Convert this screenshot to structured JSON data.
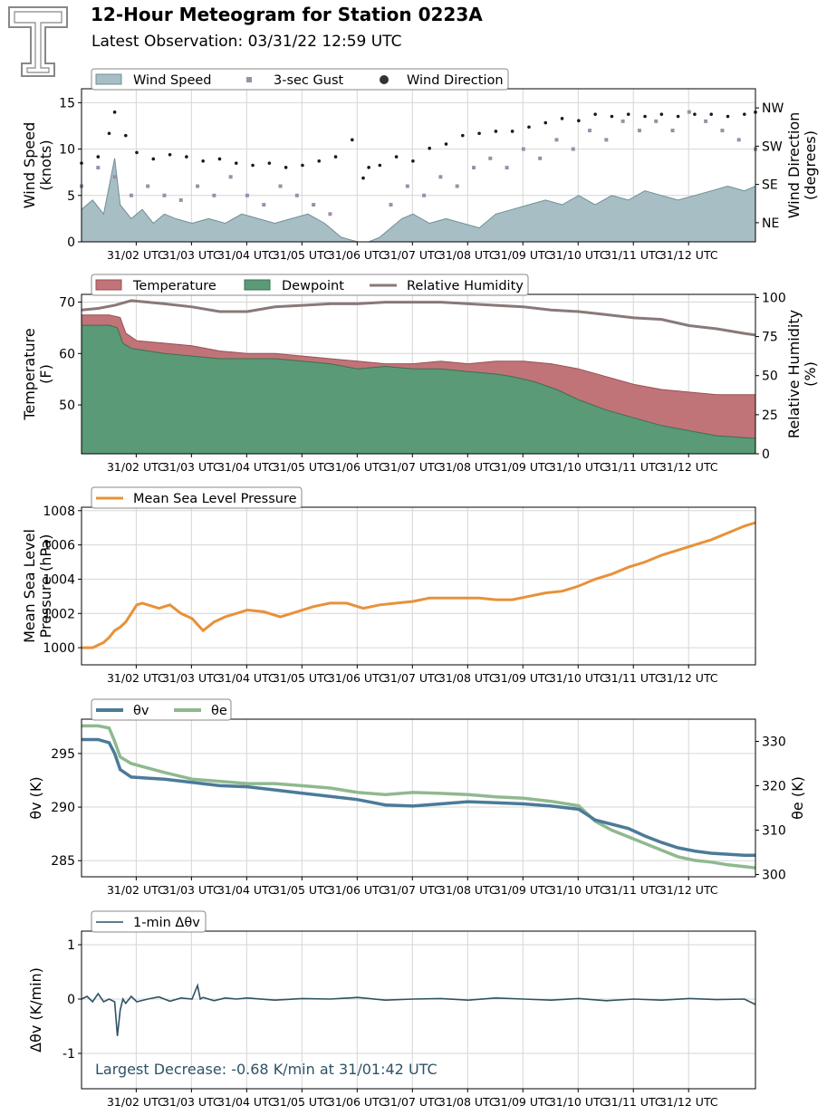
{
  "header": {
    "title": "12-Hour Meteogram for Station 0223A",
    "subtitle": "Latest Observation: 03/31/22 12:59 UTC"
  },
  "colors": {
    "wind_speed_fill": "#a7bec4",
    "wind_speed_line": "#6f8f95",
    "gust": "#9b8fa8",
    "direction": "#1a1a1a",
    "temperature": "#c07478",
    "dewpoint": "#5a9a76",
    "rh": "#8b7878",
    "pressure": "#e8913a",
    "theta_v": "#4c7a99",
    "theta_e": "#8fb98f",
    "delta": "#2d5266",
    "annotation": "#2d5266"
  },
  "x_tick_labels": [
    "31/02 UTC",
    "31/03 UTC",
    "31/04 UTC",
    "31/05 UTC",
    "31/06 UTC",
    "31/07 UTC",
    "31/08 UTC",
    "31/09 UTC",
    "31/10 UTC",
    "31/11 UTC",
    "31/12 UTC"
  ],
  "chart_data": [
    {
      "id": "wind",
      "type": "area",
      "ylabel_lines": [
        "Wind Speed",
        "(knots)"
      ],
      "y2label_lines": [
        "Wind Direction",
        "(degrees)"
      ],
      "ylim": [
        0,
        16.5
      ],
      "yticks": [
        0,
        5,
        10,
        15
      ],
      "y2ticks": [
        {
          "value": 45,
          "label": "NE"
        },
        {
          "value": 135,
          "label": "SE"
        },
        {
          "value": 225,
          "label": "SW"
        },
        {
          "value": 315,
          "label": "NW"
        }
      ],
      "y2lim": [
        0,
        360
      ],
      "legend": [
        "Wind Speed",
        "3-sec Gust",
        "Wind Direction"
      ],
      "legend_placement": "top-left",
      "series": [
        {
          "name": "Wind Speed",
          "x": [
            0,
            0.2,
            0.4,
            0.6,
            0.7,
            0.9,
            1.1,
            1.3,
            1.5,
            1.7,
            2,
            2.3,
            2.6,
            2.9,
            3.2,
            3.5,
            3.8,
            4.1,
            4.4,
            4.7,
            5,
            5.2,
            5.4,
            5.6,
            5.8,
            6.0,
            6.3,
            6.6,
            6.9,
            7.2,
            7.5,
            7.8,
            8.1,
            8.4,
            8.7,
            9.0,
            9.3,
            9.6,
            9.9,
            10.2,
            10.5,
            10.8,
            11.1,
            11.4,
            11.7,
            12.0,
            12.2
          ],
          "values": [
            3.5,
            4.5,
            3.0,
            9.0,
            4.0,
            2.5,
            3.5,
            2.0,
            3.0,
            2.5,
            2.0,
            2.5,
            2.0,
            3.0,
            2.5,
            2.0,
            2.5,
            3.0,
            2.0,
            0.5,
            0,
            0,
            0.5,
            1.5,
            2.5,
            3.0,
            2.0,
            2.5,
            2.0,
            1.5,
            3.0,
            3.5,
            4.0,
            4.5,
            4.0,
            5.0,
            4.0,
            5.0,
            4.5,
            5.5,
            5.0,
            4.5,
            5.0,
            5.5,
            6.0,
            5.5,
            6.0
          ]
        },
        {
          "name": "3-sec Gust",
          "x": [
            0,
            0.3,
            0.6,
            0.9,
            1.2,
            1.5,
            1.8,
            2.1,
            2.4,
            2.7,
            3.0,
            3.3,
            3.6,
            3.9,
            4.2,
            4.5,
            5.6,
            5.9,
            6.2,
            6.5,
            6.8,
            7.1,
            7.4,
            7.7,
            8.0,
            8.3,
            8.6,
            8.9,
            9.2,
            9.5,
            9.8,
            10.1,
            10.4,
            10.7,
            11.0,
            11.3,
            11.6,
            11.9,
            12.2
          ],
          "values": [
            6,
            8,
            7,
            5,
            6,
            5,
            4.5,
            6,
            5,
            7,
            5,
            4,
            6,
            5,
            4,
            3,
            4,
            6,
            5,
            7,
            6,
            8,
            9,
            8,
            10,
            9,
            11,
            10,
            12,
            11,
            13,
            12,
            13,
            12,
            14,
            13,
            12,
            11,
            10
          ]
        },
        {
          "name": "Wind Direction",
          "x": [
            0,
            0.3,
            0.5,
            0.6,
            0.8,
            1.0,
            1.3,
            1.6,
            1.9,
            2.2,
            2.5,
            2.8,
            3.1,
            3.4,
            3.7,
            4.0,
            4.3,
            4.6,
            4.9,
            5.1,
            5.2,
            5.4,
            5.7,
            6.0,
            6.3,
            6.6,
            6.9,
            7.2,
            7.5,
            7.8,
            8.1,
            8.4,
            8.7,
            9.0,
            9.3,
            9.6,
            9.9,
            10.2,
            10.5,
            10.8,
            11.1,
            11.4,
            11.7,
            12.0,
            12.2
          ],
          "values": [
            185,
            200,
            255,
            305,
            250,
            210,
            195,
            205,
            200,
            190,
            195,
            185,
            180,
            185,
            175,
            180,
            190,
            200,
            240,
            150,
            175,
            180,
            200,
            190,
            220,
            230,
            250,
            255,
            260,
            260,
            270,
            280,
            290,
            285,
            300,
            295,
            300,
            295,
            300,
            295,
            300,
            300,
            295,
            300,
            305
          ]
        }
      ]
    },
    {
      "id": "temp",
      "type": "area",
      "ylabel_lines": [
        "Temperature",
        "(F)"
      ],
      "y2label_lines": [
        "Relative Humidity",
        "(%)"
      ],
      "ylim": [
        40.5,
        71.5
      ],
      "yticks": [
        50,
        60,
        70
      ],
      "y2lim": [
        0,
        102
      ],
      "y2ticks": [
        0,
        25,
        50,
        75,
        100
      ],
      "legend": [
        "Temperature",
        "Dewpoint",
        "Relative Humidity"
      ],
      "legend_placement": "top-left",
      "series": [
        {
          "name": "Temperature",
          "x": [
            0,
            0.5,
            0.7,
            0.8,
            1.0,
            1.5,
            2.0,
            2.5,
            3.0,
            3.5,
            4.0,
            4.5,
            5.0,
            5.5,
            6.0,
            6.5,
            7.0,
            7.5,
            8.0,
            8.5,
            9.0,
            9.5,
            10.0,
            10.5,
            11.0,
            11.5,
            12.2
          ],
          "values": [
            67.5,
            67.5,
            67.0,
            64.0,
            62.5,
            62.0,
            61.5,
            60.5,
            60.0,
            60.0,
            59.5,
            59.0,
            58.5,
            58.0,
            58.0,
            58.5,
            58.0,
            58.5,
            58.5,
            58.0,
            57.0,
            55.5,
            54.0,
            53.0,
            52.5,
            52.0,
            52.0
          ]
        },
        {
          "name": "Dewpoint",
          "x": [
            0,
            0.5,
            0.65,
            0.75,
            0.9,
            1.5,
            2.0,
            2.5,
            3.0,
            3.5,
            4.0,
            4.5,
            5.0,
            5.5,
            6.0,
            6.5,
            7.0,
            7.5,
            7.8,
            8.2,
            8.6,
            9.0,
            9.5,
            10.0,
            10.5,
            11.0,
            11.5,
            12.2
          ],
          "values": [
            65.5,
            65.5,
            65.0,
            62.0,
            61.0,
            60.0,
            59.5,
            59.0,
            59.0,
            59.0,
            58.5,
            58.0,
            57.0,
            57.5,
            57.0,
            57.0,
            56.5,
            56.0,
            55.5,
            54.5,
            53.0,
            51.0,
            49.0,
            47.5,
            46.0,
            45.0,
            44.0,
            43.5
          ]
        },
        {
          "name": "Relative Humidity",
          "x": [
            0,
            0.3,
            0.6,
            0.9,
            1.2,
            1.5,
            2.0,
            2.5,
            3.0,
            3.5,
            4.0,
            4.5,
            5.0,
            5.5,
            6.0,
            6.5,
            7.0,
            7.5,
            8.0,
            8.5,
            9.0,
            9.5,
            10.0,
            10.5,
            11.0,
            11.5,
            12.0,
            12.2
          ],
          "values": [
            92,
            93,
            95,
            98,
            97,
            96,
            94,
            91,
            91,
            94,
            95,
            96,
            96,
            97,
            97,
            97,
            96,
            95,
            94,
            92,
            91,
            89,
            87,
            86,
            82,
            80,
            77,
            76
          ]
        }
      ]
    },
    {
      "id": "pressure",
      "type": "line",
      "ylabel_lines": [
        "Mean Sea Level",
        "Pressure (hPa)"
      ],
      "ylim": [
        999.0,
        1008.2
      ],
      "yticks": [
        1000,
        1002,
        1004,
        1006,
        1008
      ],
      "legend": [
        "Mean Sea Level Pressure"
      ],
      "legend_placement": "top-left",
      "series": [
        {
          "name": "Mean Sea Level Pressure",
          "x": [
            0,
            0.2,
            0.4,
            0.5,
            0.6,
            0.7,
            0.8,
            0.9,
            1.0,
            1.1,
            1.2,
            1.4,
            1.6,
            1.8,
            2.0,
            2.2,
            2.4,
            2.6,
            2.8,
            3.0,
            3.3,
            3.6,
            3.9,
            4.2,
            4.5,
            4.8,
            5.1,
            5.4,
            5.7,
            6.0,
            6.3,
            6.6,
            6.9,
            7.2,
            7.5,
            7.8,
            8.1,
            8.4,
            8.7,
            9.0,
            9.3,
            9.6,
            9.9,
            10.2,
            10.5,
            10.8,
            11.1,
            11.4,
            11.7,
            12.0,
            12.2
          ],
          "values": [
            1000.0,
            1000.0,
            1000.3,
            1000.6,
            1001.0,
            1001.2,
            1001.5,
            1002.0,
            1002.5,
            1002.6,
            1002.5,
            1002.3,
            1002.5,
            1002.0,
            1001.7,
            1001.0,
            1001.5,
            1001.8,
            1002.0,
            1002.2,
            1002.1,
            1001.8,
            1002.1,
            1002.4,
            1002.6,
            1002.6,
            1002.3,
            1002.5,
            1002.6,
            1002.7,
            1002.9,
            1002.9,
            1002.9,
            1002.9,
            1002.8,
            1002.8,
            1003.0,
            1003.2,
            1003.3,
            1003.6,
            1004.0,
            1004.3,
            1004.7,
            1005.0,
            1005.4,
            1005.7,
            1006.0,
            1006.3,
            1006.7,
            1007.1,
            1007.3
          ]
        }
      ]
    },
    {
      "id": "theta",
      "type": "line",
      "ylabel_lines": [
        "θv (K)"
      ],
      "y2label_lines": [
        "θe (K)"
      ],
      "ylim": [
        283.5,
        298.2
      ],
      "yticks": [
        285,
        290,
        295
      ],
      "y2lim": [
        299.5,
        335.0
      ],
      "y2ticks": [
        300,
        310,
        320,
        330
      ],
      "legend": [
        "θv",
        "θe"
      ],
      "legend_placement": "top-left",
      "series": [
        {
          "name": "θv",
          "x": [
            0,
            0.3,
            0.5,
            0.6,
            0.7,
            0.9,
            1.2,
            1.5,
            2.0,
            2.5,
            3.0,
            3.5,
            4.0,
            4.5,
            5.0,
            5.5,
            6.0,
            6.5,
            7.0,
            7.5,
            8.0,
            8.5,
            9.0,
            9.3,
            9.6,
            9.9,
            10.2,
            10.5,
            10.8,
            11.1,
            11.4,
            11.7,
            12.0,
            12.2
          ],
          "values": [
            296.3,
            296.3,
            296.0,
            295.0,
            293.5,
            292.8,
            292.7,
            292.6,
            292.3,
            292.0,
            291.9,
            291.6,
            291.3,
            291.0,
            290.7,
            290.2,
            290.1,
            290.3,
            290.5,
            290.4,
            290.3,
            290.1,
            289.8,
            288.8,
            288.4,
            288.0,
            287.3,
            286.7,
            286.2,
            285.9,
            285.7,
            285.6,
            285.5,
            285.5
          ]
        },
        {
          "name": "θe",
          "x": [
            0,
            0.3,
            0.5,
            0.6,
            0.7,
            0.9,
            1.2,
            1.5,
            2.0,
            2.5,
            3.0,
            3.5,
            4.0,
            4.5,
            5.0,
            5.5,
            6.0,
            6.5,
            7.0,
            7.5,
            8.0,
            8.5,
            9.0,
            9.3,
            9.6,
            9.9,
            10.2,
            10.5,
            10.8,
            11.1,
            11.4,
            11.7,
            12.0,
            12.2
          ],
          "values": [
            333.5,
            333.5,
            333.0,
            330.0,
            326.5,
            325.0,
            324.0,
            323.0,
            321.5,
            321.0,
            320.5,
            320.5,
            320.0,
            319.5,
            318.5,
            318.0,
            318.5,
            318.3,
            318.0,
            317.5,
            317.2,
            316.5,
            315.5,
            312.0,
            310.0,
            308.5,
            307.0,
            305.5,
            304.0,
            303.2,
            302.8,
            302.2,
            301.8,
            301.5
          ]
        }
      ]
    },
    {
      "id": "delta",
      "type": "line",
      "ylabel_lines": [
        "Δθv (K/min)"
      ],
      "ylim": [
        -1.65,
        1.25
      ],
      "yticks": [
        -1,
        0,
        1
      ],
      "legend": [
        "1-min Δθv"
      ],
      "legend_placement": "top-left",
      "annotation": "Largest Decrease: -0.68 K/min at 31/01:42 UTC",
      "series": [
        {
          "name": "1-min Δθv",
          "x": [
            0,
            0.1,
            0.2,
            0.3,
            0.4,
            0.5,
            0.6,
            0.65,
            0.7,
            0.75,
            0.8,
            0.9,
            1.0,
            1.2,
            1.4,
            1.6,
            1.8,
            2.0,
            2.1,
            2.15,
            2.2,
            2.4,
            2.6,
            2.8,
            3.0,
            3.5,
            4.0,
            4.5,
            5.0,
            5.5,
            6.0,
            6.5,
            7.0,
            7.5,
            8.0,
            8.5,
            9.0,
            9.5,
            10.0,
            10.5,
            11.0,
            11.5,
            12.0,
            12.2
          ],
          "values": [
            0.0,
            0.05,
            -0.05,
            0.1,
            -0.05,
            0.0,
            -0.05,
            -0.68,
            -0.2,
            0.0,
            -0.08,
            0.05,
            -0.05,
            0.0,
            0.04,
            -0.04,
            0.02,
            0.0,
            0.25,
            0.0,
            0.03,
            -0.03,
            0.02,
            0.0,
            0.02,
            -0.02,
            0.01,
            0.0,
            0.03,
            -0.02,
            0.0,
            0.01,
            -0.02,
            0.02,
            0.0,
            -0.02,
            0.01,
            -0.03,
            0.0,
            -0.02,
            0.01,
            -0.01,
            0.0,
            -0.1
          ]
        }
      ]
    }
  ]
}
